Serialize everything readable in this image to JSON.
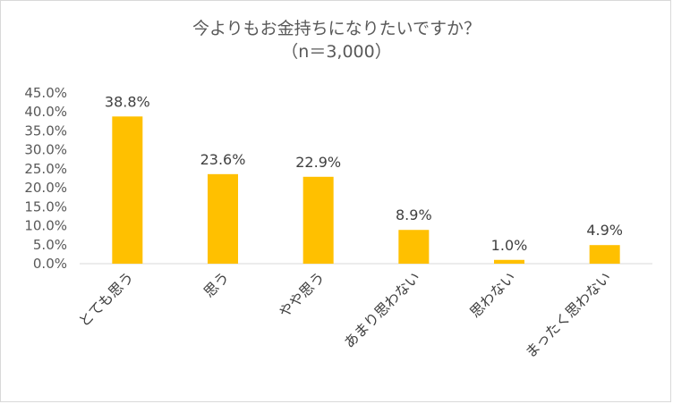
{
  "chart_data": {
    "type": "bar",
    "title": "今よりもお金持ちになりたいですか？",
    "subtitle": "（n＝3,000）",
    "categories": [
      "とても思う",
      "思う",
      "やや思う",
      "あまり思わない",
      "思わない",
      "まったく思わない"
    ],
    "values": [
      38.8,
      23.6,
      22.9,
      8.9,
      1.0,
      4.9
    ],
    "data_labels": [
      "38.8%",
      "23.6%",
      "22.9%",
      "8.9%",
      "1.0%",
      "4.9%"
    ],
    "yticks": [
      "0.0%",
      "5.0%",
      "10.0%",
      "15.0%",
      "20.0%",
      "25.0%",
      "30.0%",
      "35.0%",
      "40.0%",
      "45.0%"
    ],
    "ylim": [
      0,
      45
    ],
    "xlabel": "",
    "ylabel": "",
    "grid": false,
    "bar_color": "#FFC000"
  }
}
